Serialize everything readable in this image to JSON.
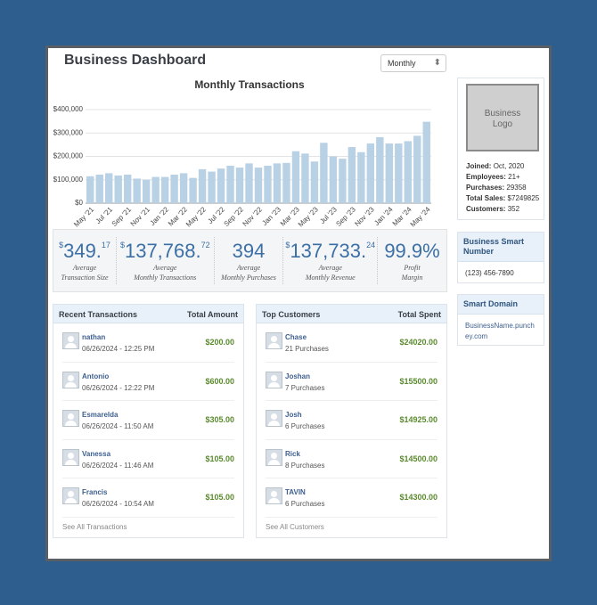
{
  "header": {
    "title": "Business Dashboard",
    "period": "Monthly"
  },
  "chart_data": {
    "type": "bar",
    "title": "Monthly Transactions",
    "categories": [
      "May '21",
      null,
      "Jul '21",
      null,
      "Sep '21",
      null,
      "Nov '21",
      null,
      "Jan '22",
      null,
      "Mar '22",
      null,
      "May '22",
      null,
      "Jul '22",
      null,
      "Sep '22",
      null,
      "Nov '22",
      null,
      "Jan '23",
      null,
      "Mar '23",
      null,
      "May '23",
      null,
      "Jul '23",
      null,
      "Sep '23",
      null,
      "Nov '23",
      null,
      "Jan '24",
      null,
      "Mar '24",
      null,
      "May '24"
    ],
    "values": [
      115000,
      122000,
      128000,
      118000,
      122000,
      105000,
      100000,
      112000,
      112000,
      122000,
      128000,
      108000,
      145000,
      135000,
      148000,
      160000,
      152000,
      170000,
      152000,
      160000,
      170000,
      172000,
      222000,
      212000,
      178000,
      258000,
      200000,
      190000,
      240000,
      218000,
      255000,
      282000,
      255000,
      255000,
      265000,
      288000,
      348000
    ],
    "color": "#b9d1e4",
    "ylim": [
      0,
      400000
    ],
    "yticks": [
      {
        "value": 0,
        "label": "$0"
      },
      {
        "value": 100000,
        "label": "$100,000"
      },
      {
        "value": 200000,
        "label": "$200,000"
      },
      {
        "value": 300000,
        "label": "$300,000"
      },
      {
        "value": 400000,
        "label": "$400,000"
      }
    ],
    "grid": true
  },
  "stats": [
    {
      "prefix": "$",
      "number": "349.",
      "suffix": "17",
      "caption": [
        "Average",
        "Transaction Size"
      ]
    },
    {
      "prefix": "$",
      "number": "137,768.",
      "suffix": "72",
      "caption": [
        "Average",
        "Monthly Transactions"
      ]
    },
    {
      "number": "394",
      "caption": [
        "Average",
        "Monthly Purchases"
      ]
    },
    {
      "prefix": "$",
      "number": "137,733.",
      "suffix": "24",
      "caption": [
        "Average",
        "Monthly Revenue"
      ]
    },
    {
      "number": "99.9%",
      "caption": [
        "Profit",
        "Margin"
      ]
    }
  ],
  "recent": {
    "title": "Recent Transactions",
    "column": "Total Amount",
    "footer": "See All Transactions",
    "rows": [
      {
        "name": "nathan",
        "detail": "06/26/2024 - 12:25 PM",
        "amount": "$200.00"
      },
      {
        "name": "Antonio",
        "detail": "06/26/2024 - 12:22 PM",
        "amount": "$600.00"
      },
      {
        "name": "Esmarelda",
        "detail": "06/26/2024 - 11:50 AM",
        "amount": "$305.00"
      },
      {
        "name": "Vanessa",
        "detail": "06/26/2024 - 11:46 AM",
        "amount": "$105.00"
      },
      {
        "name": "Francis",
        "detail": "06/26/2024 - 10:54 AM",
        "amount": "$105.00"
      }
    ]
  },
  "customers": {
    "title": "Top Customers",
    "column": "Total Spent",
    "footer": "See All Customers",
    "rows": [
      {
        "name": "Chase",
        "detail": "21 Purchases",
        "amount": "$24020.00"
      },
      {
        "name": "Joshan",
        "detail": "7 Purchases",
        "amount": "$15500.00"
      },
      {
        "name": "Josh",
        "detail": "6 Purchases",
        "amount": "$14925.00"
      },
      {
        "name": "Rick",
        "detail": "8 Purchases",
        "amount": "$14500.00"
      },
      {
        "name": "TAVIN",
        "detail": "6 Purchases",
        "amount": "$14300.00"
      }
    ]
  },
  "profile": {
    "logo": "Business Logo",
    "fields": [
      {
        "label": "Joined:",
        "value": "Oct, 2020"
      },
      {
        "label": "Employees:",
        "value": "21+"
      },
      {
        "label": "Purchases:",
        "value": "29358"
      },
      {
        "label": "Total Sales:",
        "value": "$7249825"
      },
      {
        "label": "Customers:",
        "value": "352"
      }
    ]
  },
  "phone": {
    "title": "Business Smart Number",
    "value": "(123) 456-7890"
  },
  "domain": {
    "title": "Smart Domain",
    "value": "BusinessName.punchey.com"
  }
}
